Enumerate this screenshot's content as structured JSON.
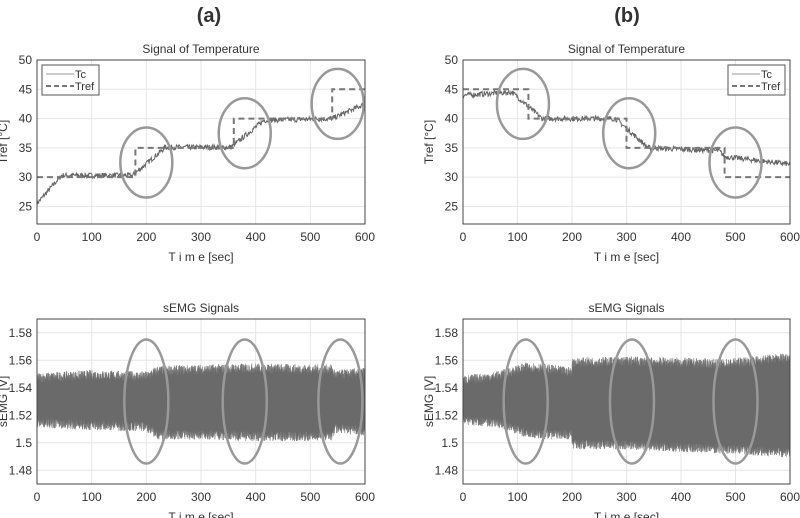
{
  "panel_labels": [
    "(a)",
    "(b)"
  ],
  "chart_data": [
    {
      "type": "line",
      "panel": "(a)",
      "title": "Signal of Temperature",
      "xlabel": "T i m e [sec]",
      "ylabel": "Tref [°C]",
      "xlim": [
        0,
        600
      ],
      "ylim": [
        22,
        50
      ],
      "xticks": [
        0,
        100,
        200,
        300,
        400,
        500,
        600
      ],
      "yticks": [
        25,
        30,
        35,
        40,
        45,
        50
      ],
      "grid": true,
      "legend": "top-left",
      "series": [
        {
          "name": "Tc",
          "style": "solid",
          "x": [
            0,
            45,
            175,
            235,
            355,
            415,
            540,
            600
          ],
          "y": [
            25.5,
            30.3,
            30.3,
            35.1,
            35.1,
            39.7,
            40,
            42.5
          ]
        },
        {
          "name": "Tref",
          "style": "dashed",
          "x": [
            0,
            180,
            180,
            360,
            360,
            540,
            540,
            600
          ],
          "y": [
            30,
            30,
            35,
            35,
            40,
            40,
            45,
            45
          ]
        }
      ],
      "annotations": [
        {
          "type": "ellipse",
          "x": 200,
          "y": 32.5
        },
        {
          "type": "ellipse",
          "x": 380,
          "y": 37.5
        },
        {
          "type": "ellipse",
          "x": 550,
          "y": 42.5
        }
      ]
    },
    {
      "type": "line",
      "panel": "(b)",
      "title": "Signal of Temperature",
      "xlabel": "T i m e [sec]",
      "ylabel": "Tref [°C]",
      "xlim": [
        0,
        600
      ],
      "ylim": [
        22,
        50
      ],
      "xticks": [
        0,
        100,
        200,
        300,
        400,
        500,
        600
      ],
      "yticks": [
        25,
        30,
        35,
        40,
        45,
        50
      ],
      "grid": true,
      "legend": "top-right",
      "series": [
        {
          "name": "Tc",
          "style": "solid",
          "x": [
            0,
            90,
            145,
            280,
            340,
            470,
            480,
            600
          ],
          "y": [
            44,
            44.5,
            40,
            40,
            35,
            34.5,
            33.5,
            32.2
          ]
        },
        {
          "name": "Tref",
          "style": "dashed",
          "x": [
            0,
            120,
            120,
            300,
            300,
            480,
            480,
            600
          ],
          "y": [
            45,
            45,
            40,
            40,
            35,
            35,
            30,
            30
          ]
        }
      ],
      "annotations": [
        {
          "type": "ellipse",
          "x": 110,
          "y": 42.5
        },
        {
          "type": "ellipse",
          "x": 305,
          "y": 37.5
        },
        {
          "type": "ellipse",
          "x": 500,
          "y": 32.5
        }
      ]
    },
    {
      "type": "area",
      "panel": "(a)",
      "title": "sEMG Signals",
      "xlabel": "T i m e [sec]",
      "ylabel": "sEMG [V]",
      "xlim": [
        0,
        600
      ],
      "ylim": [
        1.47,
        1.59
      ],
      "xticks": [
        0,
        100,
        200,
        300,
        400,
        500,
        600
      ],
      "yticks": [
        1.48,
        1.5,
        1.52,
        1.54,
        1.56,
        1.58
      ],
      "grid": true,
      "envelope": {
        "x": [
          0,
          100,
          200,
          220,
          300,
          400,
          500,
          540,
          545,
          600
        ],
        "upper": [
          1.546,
          1.548,
          1.547,
          1.551,
          1.552,
          1.553,
          1.552,
          1.552,
          1.548,
          1.55
        ],
        "lower": [
          1.516,
          1.514,
          1.513,
          1.507,
          1.507,
          1.506,
          1.506,
          1.506,
          1.512,
          1.51
        ]
      },
      "annotations": [
        {
          "type": "ellipse",
          "x": 200,
          "y": 1.53
        },
        {
          "type": "ellipse",
          "x": 380,
          "y": 1.53
        },
        {
          "type": "ellipse",
          "x": 555,
          "y": 1.53
        }
      ]
    },
    {
      "type": "area",
      "panel": "(b)",
      "title": "sEMG Signals",
      "xlabel": "T i m e [sec]",
      "ylabel": "sEMG [V]",
      "xlim": [
        0,
        600
      ],
      "ylim": [
        1.47,
        1.59
      ],
      "xticks": [
        0,
        100,
        200,
        300,
        400,
        500,
        600
      ],
      "yticks": [
        1.48,
        1.5,
        1.52,
        1.54,
        1.56,
        1.58
      ],
      "grid": true,
      "envelope": {
        "x": [
          0,
          60,
          120,
          199,
          201,
          300,
          400,
          475,
          480,
          600
        ],
        "upper": [
          1.544,
          1.547,
          1.554,
          1.55,
          1.557,
          1.558,
          1.557,
          1.556,
          1.556,
          1.561
        ],
        "lower": [
          1.518,
          1.516,
          1.508,
          1.507,
          1.5,
          1.5,
          1.498,
          1.497,
          1.497,
          1.494
        ]
      },
      "annotations": [
        {
          "type": "ellipse",
          "x": 115,
          "y": 1.53
        },
        {
          "type": "ellipse",
          "x": 310,
          "y": 1.53
        },
        {
          "type": "ellipse",
          "x": 500,
          "y": 1.53
        }
      ]
    }
  ]
}
